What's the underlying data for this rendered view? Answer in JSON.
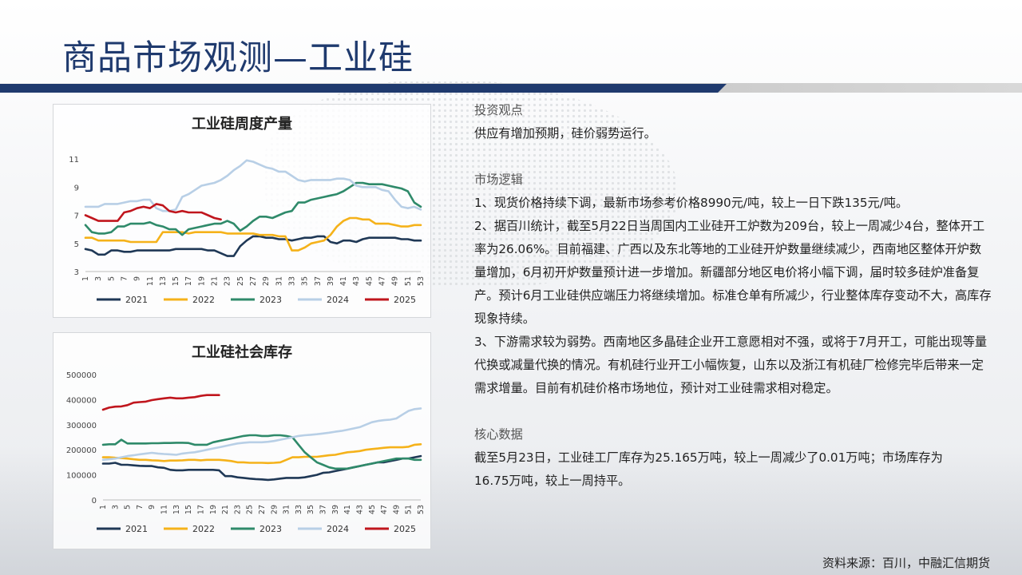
{
  "slide": {
    "title": "商品市场观测—工业硅",
    "source": "资料来源：百川，中融汇信期货"
  },
  "analysis": {
    "investment_view_title": "投资观点",
    "investment_view": "供应有增加预期，硅价弱势运行。",
    "market_logic_title": "市场逻辑",
    "market_logic": [
      "1、现货价格持续下调，最新市场参考价格8990元/吨，较上一日下跌135元/吨。",
      "2、据百川统计，截至5月22日当周国内工业硅开工炉数为209台，较上一周减少4台，整体开工率为26.06%。目前福建、广西以及东北等地的工业硅开炉数量继续减少，西南地区整体开炉数量增加，6月初开炉数量预计进一步增加。新疆部分地区电价将小幅下调，届时较多硅炉准备复产。预计6月工业硅供应端压力将继续增加。标准仓单有所减少，行业整体库存变动不大，高库存现象持续。",
      "3、下游需求较为弱势。西南地区多晶硅企业开工意愿相对不强，或将于7月开工，可能出现等量代换或减量代换的情况。有机硅行业开工小幅恢复，山东以及浙江有机硅厂检修完毕后带来一定需求增量。目前有机硅价格市场地位，预计对工业硅需求相对稳定。"
    ],
    "core_data_title": "核心数据",
    "core_data": "截至5月23日，工业硅工厂库存为25.165万吨，较上一周减少了0.01万吨；市场库存为16.75万吨，较上一周持平。"
  },
  "chart_data": [
    {
      "type": "line",
      "title": "工业硅周度产量",
      "xlabel": "",
      "ylabel": "",
      "xlim": [
        1,
        53
      ],
      "ylim": [
        3,
        11
      ],
      "yticks": [
        3,
        5,
        7,
        9,
        11
      ],
      "x_tick_labels": [
        "1",
        "3",
        "5",
        "7",
        "9",
        "11",
        "13",
        "15",
        "17",
        "19",
        "21",
        "23",
        "25",
        "27",
        "29",
        "31",
        "33",
        "35",
        "37",
        "39",
        "41",
        "43",
        "45",
        "47",
        "49",
        "51",
        "53"
      ],
      "legend_position": "bottom",
      "grid": false,
      "series": [
        {
          "name": "2021",
          "color": "#1f3856",
          "values": [
            4.6,
            4.5,
            4.2,
            4.2,
            4.5,
            4.5,
            4.4,
            4.4,
            4.5,
            4.5,
            4.5,
            4.5,
            4.5,
            4.5,
            4.6,
            4.6,
            4.6,
            4.6,
            4.6,
            4.5,
            4.5,
            4.3,
            4.1,
            4.1,
            4.8,
            5.2,
            5.5,
            5.5,
            5.4,
            5.4,
            5.3,
            5.3,
            5.2,
            5.3,
            5.4,
            5.4,
            5.5,
            5.5,
            5.1,
            5.0,
            5.2,
            5.2,
            5.1,
            5.3,
            5.4,
            5.4,
            5.4,
            5.4,
            5.4,
            5.3,
            5.3,
            5.2,
            5.2
          ]
        },
        {
          "name": "2022",
          "color": "#f5b21a",
          "values": [
            5.4,
            5.4,
            5.2,
            5.2,
            5.2,
            5.2,
            5.2,
            5.1,
            5.1,
            5.1,
            5.1,
            5.1,
            5.8,
            5.8,
            5.8,
            5.8,
            5.7,
            5.8,
            5.8,
            5.8,
            5.8,
            5.8,
            5.7,
            5.7,
            5.7,
            5.7,
            5.7,
            5.6,
            5.6,
            5.6,
            5.5,
            5.5,
            4.5,
            4.5,
            4.7,
            5.0,
            5.1,
            5.2,
            5.6,
            6.2,
            6.6,
            6.8,
            6.8,
            6.7,
            6.7,
            6.4,
            6.4,
            6.4,
            6.3,
            6.2,
            6.2,
            6.3,
            6.3
          ]
        },
        {
          "name": "2023",
          "color": "#2f8a6a",
          "values": [
            6.3,
            5.8,
            5.7,
            5.7,
            5.8,
            6.2,
            6.2,
            6.4,
            6.4,
            6.4,
            6.5,
            6.3,
            6.2,
            6.0,
            6.0,
            5.6,
            6.0,
            6.1,
            6.2,
            6.3,
            6.4,
            6.4,
            6.6,
            6.4,
            5.9,
            6.2,
            6.6,
            6.9,
            6.9,
            6.8,
            7.0,
            7.2,
            7.3,
            7.9,
            7.9,
            8.1,
            8.2,
            8.3,
            8.4,
            8.5,
            8.7,
            9.0,
            9.3,
            9.3,
            9.2,
            9.2,
            9.2,
            9.1,
            9.0,
            8.9,
            8.7,
            7.9,
            7.6
          ]
        },
        {
          "name": "2024",
          "color": "#b8cfe6",
          "values": [
            7.6,
            7.6,
            7.6,
            7.8,
            7.8,
            7.8,
            7.9,
            8.0,
            8.0,
            8.1,
            8.1,
            7.5,
            7.3,
            7.3,
            7.4,
            8.3,
            8.5,
            8.8,
            9.1,
            9.2,
            9.3,
            9.5,
            9.8,
            10.2,
            10.5,
            10.9,
            10.8,
            10.6,
            10.4,
            10.3,
            10.1,
            10.1,
            9.8,
            9.5,
            9.4,
            9.5,
            9.5,
            9.5,
            9.5,
            9.6,
            9.6,
            9.5,
            9.1,
            9.0,
            9.0,
            9.0,
            8.8,
            8.7,
            8.1,
            7.6,
            7.5,
            7.6,
            7.4
          ]
        },
        {
          "name": "2025",
          "color": "#c0161d",
          "values": [
            7.0,
            6.8,
            6.6,
            6.6,
            6.6,
            6.6,
            7.2,
            7.3,
            7.5,
            7.6,
            7.5,
            7.8,
            7.7,
            7.3,
            7.2,
            7.3,
            7.2,
            7.2,
            7.2,
            7.0,
            6.8,
            6.7
          ]
        }
      ]
    },
    {
      "type": "line",
      "title": "工业硅社会库存",
      "xlabel": "",
      "ylabel": "",
      "xlim": [
        1,
        53
      ],
      "ylim": [
        0,
        500000
      ],
      "yticks": [
        0,
        100000,
        200000,
        300000,
        400000,
        500000
      ],
      "x_tick_labels": [
        "1",
        "3",
        "5",
        "7",
        "9",
        "11",
        "13",
        "15",
        "17",
        "19",
        "21",
        "23",
        "25",
        "27",
        "29",
        "31",
        "33",
        "35",
        "37",
        "39",
        "41",
        "43",
        "45",
        "47",
        "49",
        "51",
        "53"
      ],
      "legend_position": "bottom",
      "grid": false,
      "series": [
        {
          "name": "2021",
          "color": "#1f3856",
          "values": [
            145000,
            145000,
            148000,
            140000,
            140000,
            138000,
            136000,
            135000,
            135000,
            130000,
            128000,
            120000,
            118000,
            118000,
            120000,
            120000,
            120000,
            120000,
            120000,
            118000,
            95000,
            95000,
            90000,
            88000,
            85000,
            83000,
            82000,
            80000,
            82000,
            85000,
            88000,
            88000,
            88000,
            90000,
            95000,
            100000,
            108000,
            110000,
            115000,
            120000,
            125000,
            130000,
            135000,
            140000,
            145000,
            150000,
            150000,
            155000,
            160000,
            165000,
            165000,
            170000,
            175000
          ]
        },
        {
          "name": "2022",
          "color": "#f5b21a",
          "values": [
            170000,
            170000,
            168000,
            167000,
            165000,
            162000,
            160000,
            160000,
            158000,
            157000,
            155000,
            157000,
            157000,
            158000,
            160000,
            160000,
            158000,
            160000,
            160000,
            160000,
            158000,
            155000,
            150000,
            150000,
            148000,
            148000,
            148000,
            147000,
            148000,
            150000,
            160000,
            170000,
            170000,
            172000,
            172000,
            172000,
            175000,
            178000,
            180000,
            185000,
            190000,
            192000,
            195000,
            200000,
            203000,
            205000,
            208000,
            210000,
            210000,
            210000,
            212000,
            220000,
            222000
          ]
        },
        {
          "name": "2023",
          "color": "#2f8a6a",
          "values": [
            220000,
            222000,
            222000,
            240000,
            225000,
            225000,
            225000,
            225000,
            226000,
            226000,
            227000,
            227000,
            228000,
            228000,
            227000,
            220000,
            220000,
            220000,
            230000,
            235000,
            240000,
            245000,
            250000,
            255000,
            258000,
            258000,
            255000,
            255000,
            258000,
            258000,
            255000,
            250000,
            220000,
            190000,
            170000,
            150000,
            140000,
            130000,
            125000,
            125000,
            125000,
            130000,
            135000,
            140000,
            145000,
            150000,
            155000,
            160000,
            165000,
            165000,
            165000,
            160000,
            160000
          ]
        },
        {
          "name": "2024",
          "color": "#b8cfe6",
          "values": [
            160000,
            162000,
            165000,
            170000,
            175000,
            178000,
            182000,
            185000,
            188000,
            185000,
            183000,
            182000,
            180000,
            185000,
            188000,
            190000,
            195000,
            200000,
            205000,
            210000,
            215000,
            220000,
            225000,
            228000,
            230000,
            230000,
            230000,
            232000,
            235000,
            240000,
            245000,
            250000,
            255000,
            258000,
            260000,
            262000,
            265000,
            268000,
            272000,
            275000,
            280000,
            285000,
            290000,
            300000,
            310000,
            315000,
            318000,
            320000,
            325000,
            340000,
            355000,
            362000,
            365000
          ]
        },
        {
          "name": "2025",
          "color": "#c0161d",
          "values": [
            360000,
            368000,
            372000,
            373000,
            378000,
            388000,
            390000,
            392000,
            398000,
            402000,
            405000,
            408000,
            405000,
            405000,
            408000,
            410000,
            415000,
            418000,
            418000,
            418000
          ]
        }
      ]
    }
  ]
}
